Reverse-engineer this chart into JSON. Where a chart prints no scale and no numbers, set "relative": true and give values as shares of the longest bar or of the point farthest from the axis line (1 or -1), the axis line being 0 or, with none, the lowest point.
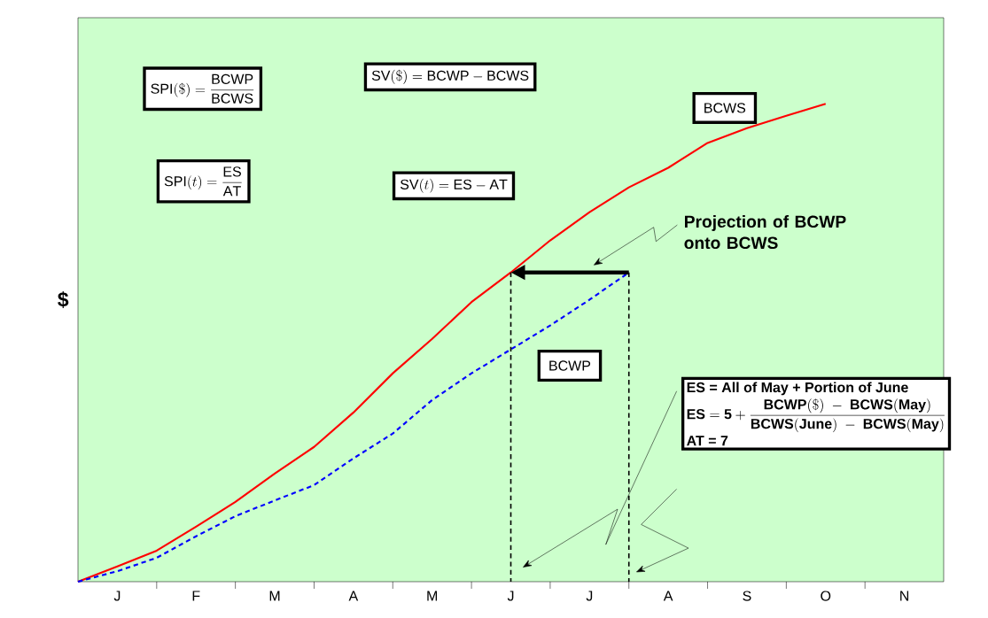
{
  "chart_data": {
    "type": "line",
    "relative": true,
    "ylabel": "$",
    "categories": [
      null,
      "J",
      null,
      "F",
      null,
      "M",
      null,
      "A",
      null,
      "M",
      null,
      "J",
      null,
      "J",
      null,
      "A",
      null,
      "S",
      null,
      "O",
      null,
      "N",
      null
    ],
    "series": [
      {
        "name": "BCWS",
        "color": "#ff0000",
        "line_style": "solid",
        "values": [
          0,
          0.032,
          0.065,
          0.115,
          0.167,
          0.226,
          0.282,
          0.354,
          0.436,
          0.508,
          0.585,
          0.647,
          0.714,
          0.773,
          0.825,
          0.866,
          0.918,
          0.949,
          0.975,
          1.0,
          null,
          null,
          null
        ]
      },
      {
        "name": "BCWP",
        "color": "#0000ff",
        "line_style": "dashed",
        "values": [
          0,
          0.022,
          0.05,
          0.095,
          0.137,
          0.17,
          0.202,
          0.258,
          0.31,
          0.38,
          0.436,
          0.486,
          0.536,
          0.59,
          0.647,
          null,
          null,
          null,
          null,
          null,
          null,
          null,
          null
        ]
      }
    ],
    "annotations": [
      "\\mathrm{SPI}(\\$) = \\frac{\\mathrm{BCWP}}{\\mathrm{BCWS}}",
      "\\mathrm{SV}(\\$) = \\mathrm{BCWP} - \\mathrm{BCWS}",
      "\\mathrm{SPI}(t) = \\frac{\\mathrm{ES}}{\\mathrm{AT}}",
      "\\mathrm{SV}(t) = \\mathrm{ES} - \\mathrm{AT}",
      "**Projection of BCWP onto BCWS**",
      "**ES = All of May + Portion of June**",
      "\\mathbf{ES = 5 + \\frac{BCWP(\\$)\\ -\\ BCWS(May)}{BCWS(June)\\ -\\ BCWS(May)}}",
      "**AT = 7**"
    ]
  }
}
